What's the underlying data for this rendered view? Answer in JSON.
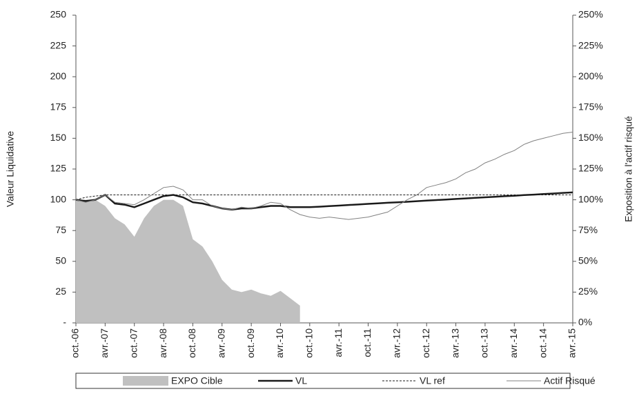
{
  "chart_data": {
    "type": "line",
    "y_label": "Valeur Liquidative",
    "y2_label": "Exposition à l'actif risqué",
    "categories": [
      "oct.-06",
      null,
      null,
      "avr.-07",
      null,
      null,
      "oct.-07",
      null,
      null,
      "avr.-08",
      null,
      null,
      "oct.-08",
      null,
      null,
      "avr.-09",
      null,
      null,
      "oct.-09",
      null,
      null,
      "avr.-10",
      null,
      null,
      "oct.-10",
      null,
      null,
      "avr.-11",
      null,
      null,
      "oct.-11",
      null,
      null,
      "avr.-12",
      null,
      null,
      "oct.-12",
      null,
      null,
      "avr.-13",
      null,
      null,
      "oct.-13",
      null,
      null,
      "avr.-14",
      null,
      null,
      "oct.-14",
      null,
      null,
      "avr.-15"
    ],
    "ylim": [
      0,
      250
    ],
    "yticks": [
      {
        "value": 0,
        "label": "-"
      },
      25,
      50,
      75,
      100,
      125,
      150,
      175,
      200,
      225,
      250
    ],
    "y2lim": [
      0,
      250
    ],
    "y2ticks": [
      {
        "value": 0,
        "label": "0%"
      },
      {
        "value": 25,
        "label": "25%"
      },
      {
        "value": 50,
        "label": "50%"
      },
      {
        "value": 75,
        "label": "75%"
      },
      {
        "value": 100,
        "label": "100%"
      },
      {
        "value": 125,
        "label": "125%"
      },
      {
        "value": 150,
        "label": "150%"
      },
      {
        "value": 175,
        "label": "175%"
      },
      {
        "value": 200,
        "label": "200%"
      },
      {
        "value": 225,
        "label": "225%"
      },
      {
        "value": 250,
        "label": "250%"
      }
    ],
    "legend": "bottom",
    "series": [
      {
        "name": "EXPO Cible",
        "color": "#c0c0c0",
        "style": "area",
        "axis": "y2",
        "values": [
          100,
          100,
          100,
          95,
          85,
          80,
          70,
          85,
          95,
          100,
          100,
          95,
          68,
          62,
          50,
          35,
          27,
          25,
          27,
          24,
          22,
          26,
          20,
          14,
          null,
          null,
          null,
          null,
          null,
          null,
          null,
          null,
          null,
          null,
          null,
          null,
          null,
          null,
          null,
          null,
          null,
          null,
          null,
          null,
          null,
          null,
          null,
          null,
          null,
          null,
          null,
          null
        ]
      },
      {
        "name": "VL",
        "color": "#1a1a1a",
        "style": "solid",
        "width": 2.5,
        "values": [
          100,
          99,
          100,
          104,
          97,
          96,
          94,
          97,
          100,
          103,
          104,
          102,
          98,
          97,
          95,
          93,
          92,
          93,
          93,
          94,
          95,
          95,
          94,
          94,
          94,
          94.4,
          94.9,
          95.3,
          95.8,
          96.2,
          96.7,
          97.1,
          97.6,
          98,
          98.4,
          98.9,
          99.3,
          99.8,
          100.2,
          100.7,
          101.1,
          101.6,
          102,
          102.4,
          102.9,
          103.3,
          103.8,
          104.2,
          104.7,
          105.1,
          105.6,
          106
        ]
      },
      {
        "name": "VL ref",
        "color": "#1a1a1a",
        "style": "dashed",
        "width": 1,
        "values": [
          100,
          102,
          103,
          104,
          104,
          104,
          104,
          104,
          104,
          104,
          104,
          104,
          104,
          104,
          104,
          104,
          104,
          104,
          104,
          104,
          104,
          104,
          104,
          104,
          104,
          104,
          104,
          104,
          104,
          104,
          104,
          104,
          104,
          104,
          104,
          104,
          104,
          104,
          104,
          104,
          104,
          104,
          104,
          104,
          104,
          104,
          104,
          104,
          104,
          104,
          104,
          104
        ]
      },
      {
        "name": "Actif Risqué",
        "color": "#808080",
        "style": "solid",
        "width": 1,
        "values": [
          100,
          98,
          100,
          104,
          98,
          97,
          96,
          100,
          105,
          110,
          111,
          108,
          100,
          100,
          95,
          93,
          92,
          94,
          93,
          95,
          98,
          97,
          92,
          88,
          86,
          85,
          86,
          85,
          84,
          85,
          86,
          88,
          90,
          95,
          100,
          104,
          110,
          112,
          114,
          117,
          122,
          125,
          130,
          133,
          137,
          140,
          145,
          148,
          150,
          152,
          154,
          155
        ]
      }
    ]
  }
}
